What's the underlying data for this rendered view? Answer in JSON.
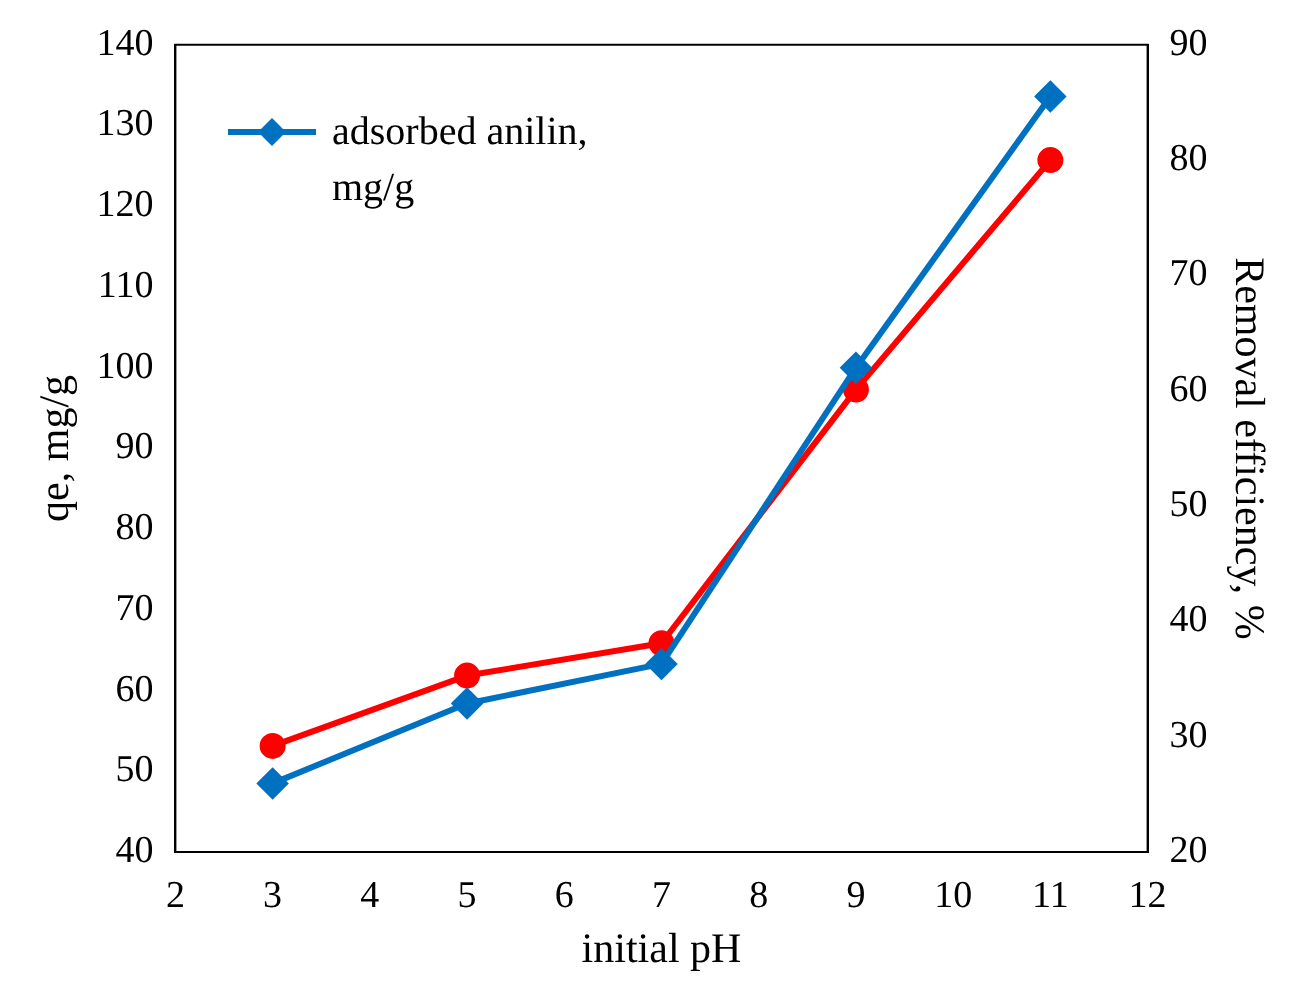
{
  "chart_data": {
    "type": "line",
    "xlabel": "initial pH",
    "ylabel": "qe, mg/g",
    "y2label": "Removal efficiency, %",
    "x": [
      3,
      5,
      7,
      9,
      11
    ],
    "series": [
      {
        "name": "adsorbed anilin, mg/g",
        "color": "#0070c0",
        "values": [
          48.5,
          58.4,
          63.3,
          100,
          133.6
        ],
        "marker": "diamond"
      },
      {
        "color": "#ff0000",
        "values": [
          29.2,
          35.3,
          38.1,
          60.1,
          80
        ],
        "axis": "y2",
        "marker": "circle"
      }
    ],
    "xlim": [
      2,
      12
    ],
    "xticks": [
      2,
      3,
      4,
      5,
      6,
      7,
      8,
      9,
      10,
      11,
      12
    ],
    "ylim": [
      40,
      140
    ],
    "yticks": [
      40,
      50,
      60,
      70,
      80,
      90,
      100,
      110,
      120,
      130,
      140
    ],
    "y2lim": [
      20,
      90
    ],
    "y2ticks": [
      20,
      30,
      40,
      50,
      60,
      70,
      80,
      90
    ],
    "grid": false,
    "legend": "top left",
    "line_style": "solid"
  }
}
